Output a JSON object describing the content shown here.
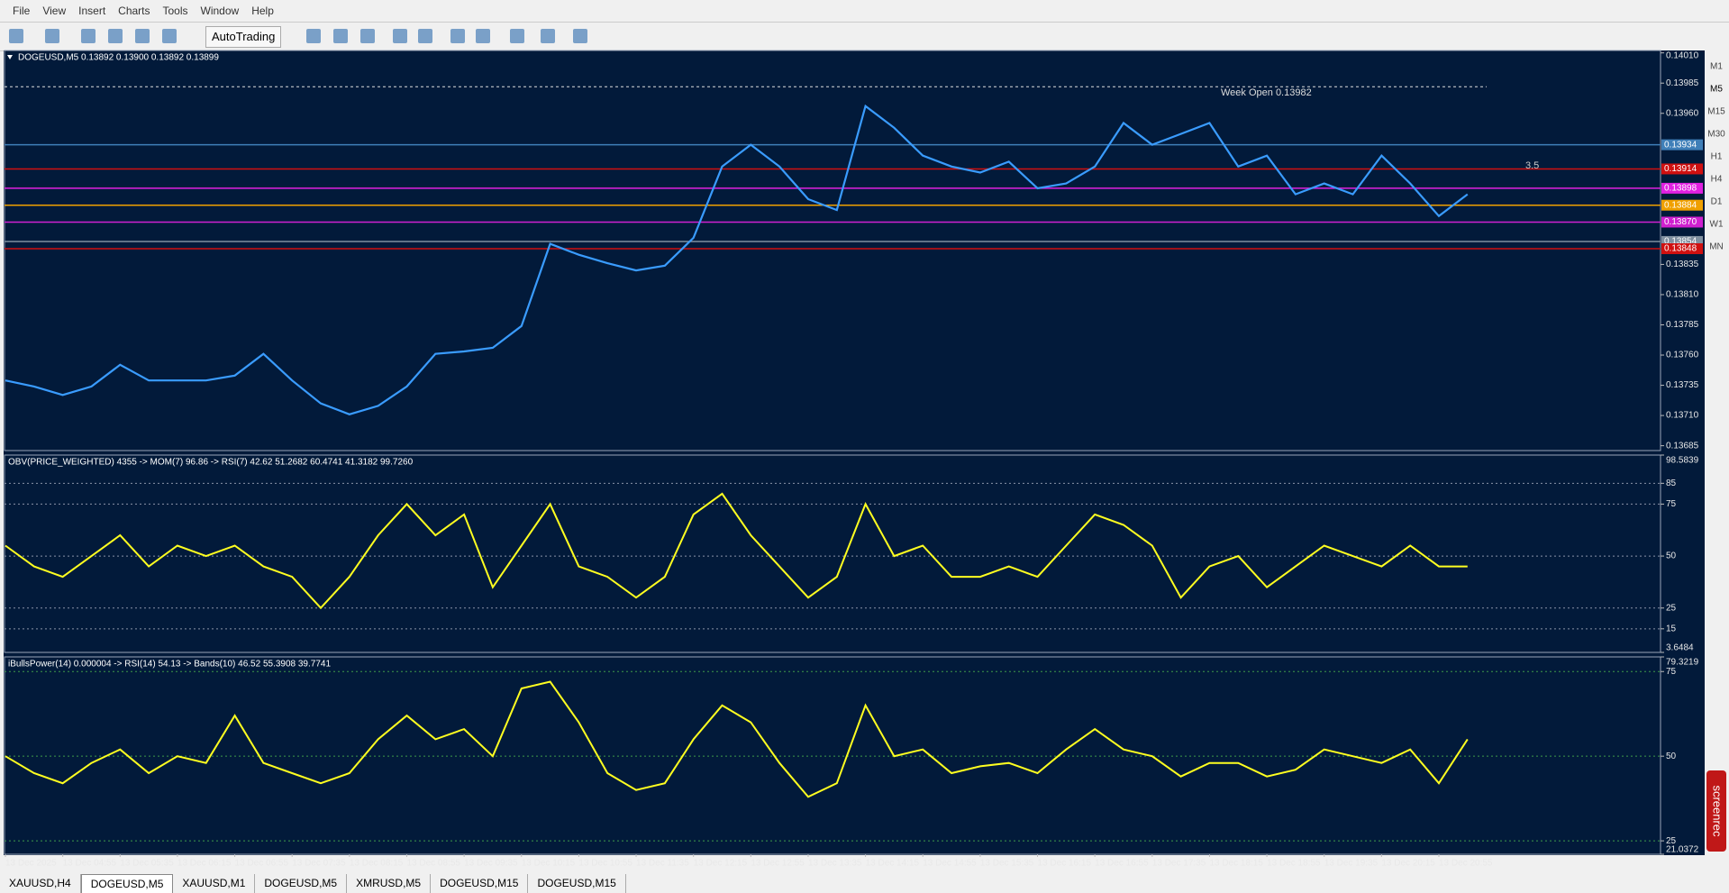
{
  "menu": [
    "File",
    "View",
    "Insert",
    "Charts",
    "Tools",
    "Window",
    "Help"
  ],
  "toolbar": {
    "autotrading": "AutoTrading"
  },
  "timeframes": [
    "M1",
    "M5",
    "M15",
    "M30",
    "H1",
    "H4",
    "D1",
    "W1",
    "MN"
  ],
  "badge": "screenrec",
  "tabs": [
    "XAUUSD,H4",
    "DOGEUSD,M5",
    "XAUUSD,M1",
    "DOGEUSD,M5",
    "XMRUSD,M5",
    "DOGEUSD,M15",
    "DOGEUSD,M15"
  ],
  "active_tab": 1,
  "chart_data": [
    {
      "type": "line",
      "title": "DOGEUSD,M5  0.13892 0.13900 0.13892 0.13899",
      "color": "#3a9cff",
      "categories": [
        "13 Dec 2025",
        null,
        "13 Dec 04:55",
        null,
        "13 Dec 05:35",
        null,
        "13 Dec 06:15",
        null,
        "13 Dec 06:55",
        null,
        "13 Dec 07:35",
        null,
        "13 Dec 08:15",
        null,
        "13 Dec 08:55",
        null,
        "13 Dec 09:35",
        null,
        "13 Dec 10:15",
        null,
        "13 Dec 10:55",
        null,
        "13 Dec 11:35",
        null,
        "13 Dec 12:15",
        null,
        "13 Dec 12:55",
        null,
        "13 Dec 13:35",
        null,
        "13 Dec 14:15",
        null,
        "13 Dec 14:55",
        null,
        "13 Dec 15:35",
        null,
        "13 Dec 16:15",
        null,
        "13 Dec 16:55",
        null,
        "13 Dec 17:35",
        null,
        "13 Dec 18:15",
        null,
        "13 Dec 18:55",
        null,
        "13 Dec 19:35",
        null,
        "13 Dec 20:15",
        null,
        "13 Dec 20:55",
        null
      ],
      "values": [
        0.13739,
        0.13734,
        0.13727,
        0.13734,
        0.13752,
        0.13739,
        0.13739,
        0.13739,
        0.13743,
        0.13761,
        0.13739,
        0.1372,
        0.13711,
        0.13718,
        0.13734,
        0.13761,
        0.13763,
        0.13766,
        0.13784,
        0.13852,
        0.13843,
        0.13836,
        0.1383,
        0.13834,
        0.13857,
        0.13916,
        0.13934,
        0.13916,
        0.13889,
        0.1388,
        0.13966,
        0.13948,
        0.13925,
        0.13916,
        0.13911,
        0.1392,
        0.13898,
        0.13902,
        0.13916,
        0.13952,
        0.13934,
        0.13943,
        0.13952,
        0.13916,
        0.13925,
        0.13893,
        0.13902,
        0.13893,
        0.13925,
        0.13902,
        0.13875,
        0.13893
      ],
      "ylim": [
        0.13681,
        0.14012
      ],
      "yticks": [
        {
          "value": 0.1401,
          "label": "0.14010"
        },
        0.13985,
        {
          "value": 0.1396,
          "label": "0.13960"
        },
        0.13835,
        {
          "value": 0.1381,
          "label": "0.13810"
        },
        0.13785,
        {
          "value": 0.1376,
          "label": "0.13760"
        },
        0.13735,
        {
          "value": 0.1371,
          "label": "0.13710"
        },
        0.13685
      ],
      "levels": [
        {
          "value": 0.13934,
          "label": "0.13934",
          "color": "#3f7fb8"
        },
        {
          "value": 0.13914,
          "label": "0.13914",
          "color": "#d01010"
        },
        {
          "value": 0.13898,
          "label": "0.13898",
          "color": "#e020e0"
        },
        {
          "value": 0.13884,
          "label": "0.13884",
          "color": "#f0a000"
        },
        {
          "value": 0.1387,
          "label": "0.13870",
          "color": "#d020d0"
        },
        {
          "value": 0.13854,
          "label": "0.13854",
          "color": "#8090a0"
        },
        {
          "value": 0.13848,
          "label": "0.13848",
          "color": "#d01010"
        }
      ],
      "week_open": {
        "value": 0.13982,
        "label": "Week Open 0.13982"
      },
      "annotation": "3.5"
    },
    {
      "type": "line",
      "title": "OBV(PRICE_WEIGHTED) 4355 -> MOM(7) 96.86 -> RSI(7) 42.62  51.2682 60.4741 41.3182 99.7260",
      "color": "#ffff20",
      "values": [
        55,
        45,
        40,
        50,
        60,
        45,
        55,
        50,
        55,
        45,
        40,
        25,
        40,
        60,
        75,
        60,
        70,
        35,
        55,
        75,
        45,
        40,
        30,
        40,
        70,
        80,
        60,
        45,
        30,
        40,
        75,
        50,
        55,
        40,
        40,
        45,
        40,
        55,
        70,
        65,
        55,
        30,
        45,
        50,
        35,
        45,
        55,
        50,
        45,
        55,
        45,
        45
      ],
      "ylim": [
        3.6484,
        98.5839
      ],
      "yticks": [
        98.5839,
        85,
        75,
        50,
        25,
        15,
        3.6484
      ],
      "grid": true,
      "grid_color": "#8a93a8"
    },
    {
      "type": "line",
      "title": "iBullsPower(14) 0.000004 -> RSI(14) 54.13 -> Bands(10) 46.52  55.3908 39.7741",
      "color": "#ffff20",
      "values": [
        50,
        45,
        42,
        48,
        52,
        45,
        50,
        48,
        62,
        48,
        45,
        42,
        45,
        55,
        62,
        55,
        58,
        50,
        70,
        72,
        60,
        45,
        40,
        42,
        55,
        65,
        60,
        48,
        38,
        42,
        65,
        50,
        52,
        45,
        47,
        48,
        45,
        52,
        58,
        52,
        50,
        44,
        48,
        48,
        44,
        46,
        52,
        50,
        48,
        52,
        42,
        55
      ],
      "ylim": [
        21.0372,
        79.3219
      ],
      "yticks": [
        79.3219,
        75,
        50,
        25,
        21.0372
      ],
      "grid": true,
      "grid_color": "#3e9a4a"
    }
  ]
}
